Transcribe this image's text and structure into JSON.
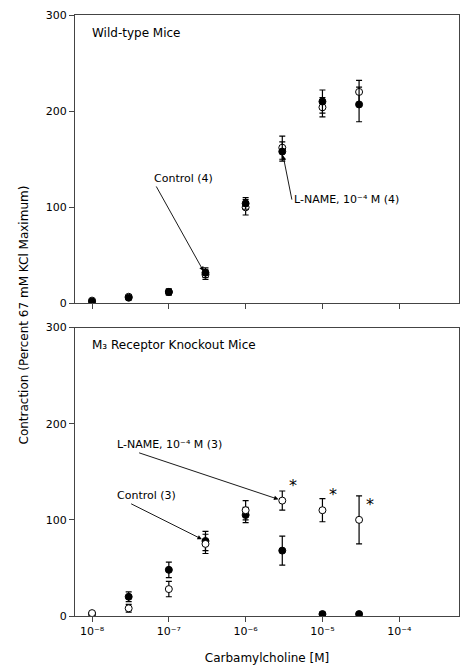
{
  "chart_data": [
    {
      "type": "scatter",
      "title": "Wild-type Mice",
      "ylabel": "Contraction (Percent 67 mM KCl Maximum)",
      "x": [
        1e-08,
        3e-08,
        1e-07,
        3e-07,
        1e-06,
        3e-06,
        1e-05,
        3e-05
      ],
      "series": [
        {
          "marker": "open circle",
          "color": "#000000",
          "values": [
            3,
            7,
            12,
            30,
            100,
            162,
            204,
            220
          ],
          "errors": [
            1,
            2,
            3,
            5,
            8,
            12,
            10,
            12
          ]
        },
        {
          "marker": "filled circle",
          "color": "#000000",
          "values": [
            2,
            6,
            12,
            32,
            104,
            158,
            210,
            207
          ],
          "errors": [
            1,
            2,
            3,
            5,
            6,
            10,
            12,
            18
          ]
        }
      ],
      "log": "x",
      "xlim": [
        6e-09,
        0.0006
      ],
      "xticks": [
        {
          "value": 1e-08,
          "label": "10⁻⁸"
        },
        {
          "value": 1e-07,
          "label": "10⁻⁷"
        },
        {
          "value": 1e-06,
          "label": "10⁻⁶"
        },
        {
          "value": 1e-05,
          "label": "10⁻⁵"
        },
        {
          "value": 0.0001,
          "label": "10⁻⁴"
        }
      ],
      "ylim": [
        0,
        300
      ],
      "yticks": [
        0,
        100,
        200,
        300
      ],
      "grid": false,
      "tick_labels": "y",
      "annotations": [
        {
          "text": "Control (4)",
          "x": 3e-07,
          "y": 30,
          "text_x": 6e-08,
          "text_y": 130
        },
        {
          "text": "L-NAME, 10⁻⁴ M (4)",
          "x": 3e-06,
          "y": 158,
          "text_x": 4e-06,
          "text_y": 108
        }
      ]
    },
    {
      "type": "scatter",
      "title": "M₃ Receptor Knockout Mice",
      "xlabel": "Carbamylcholine [M]",
      "x": [
        1e-08,
        3e-08,
        1e-07,
        3e-07,
        1e-06,
        3e-06,
        1e-05,
        3e-05
      ],
      "series": [
        {
          "marker": "filled circle",
          "color": "#000000",
          "values": [
            2,
            20,
            48,
            78,
            105,
            68,
            2,
            2
          ],
          "errors": [
            1,
            5,
            8,
            10,
            8,
            15,
            2,
            1
          ]
        },
        {
          "marker": "open circle",
          "color": "#000000",
          "values": [
            3,
            8,
            28,
            75,
            110,
            120,
            110,
            100
          ],
          "errors": [
            1,
            4,
            8,
            10,
            10,
            10,
            12,
            25
          ]
        }
      ],
      "log": "x",
      "xlim": [
        6e-09,
        0.0006
      ],
      "xticks": [
        {
          "value": 1e-08,
          "label": "10⁻⁸"
        },
        {
          "value": 1e-07,
          "label": "10⁻⁷"
        },
        {
          "value": 1e-06,
          "label": "10⁻⁶"
        },
        {
          "value": 1e-05,
          "label": "10⁻⁵"
        },
        {
          "value": 0.0001,
          "label": "10⁻⁴"
        }
      ],
      "ylim": [
        0,
        300
      ],
      "yticks": [
        0,
        100,
        200,
        300
      ],
      "grid": false,
      "annotations": [
        {
          "text": "*",
          "x": 3e-06,
          "y": 120
        },
        {
          "text": "*",
          "x": 1e-05,
          "y": 110
        },
        {
          "text": "*",
          "x": 3e-05,
          "y": 100
        },
        {
          "text": "L-NAME, 10⁻⁴ M (3)",
          "x": 3e-06,
          "y": 120,
          "text_x": 2e-08,
          "text_y": 178
        },
        {
          "text": "Control (3)",
          "x": 3e-07,
          "y": 78,
          "text_x": 2e-08,
          "text_y": 125
        }
      ]
    }
  ]
}
